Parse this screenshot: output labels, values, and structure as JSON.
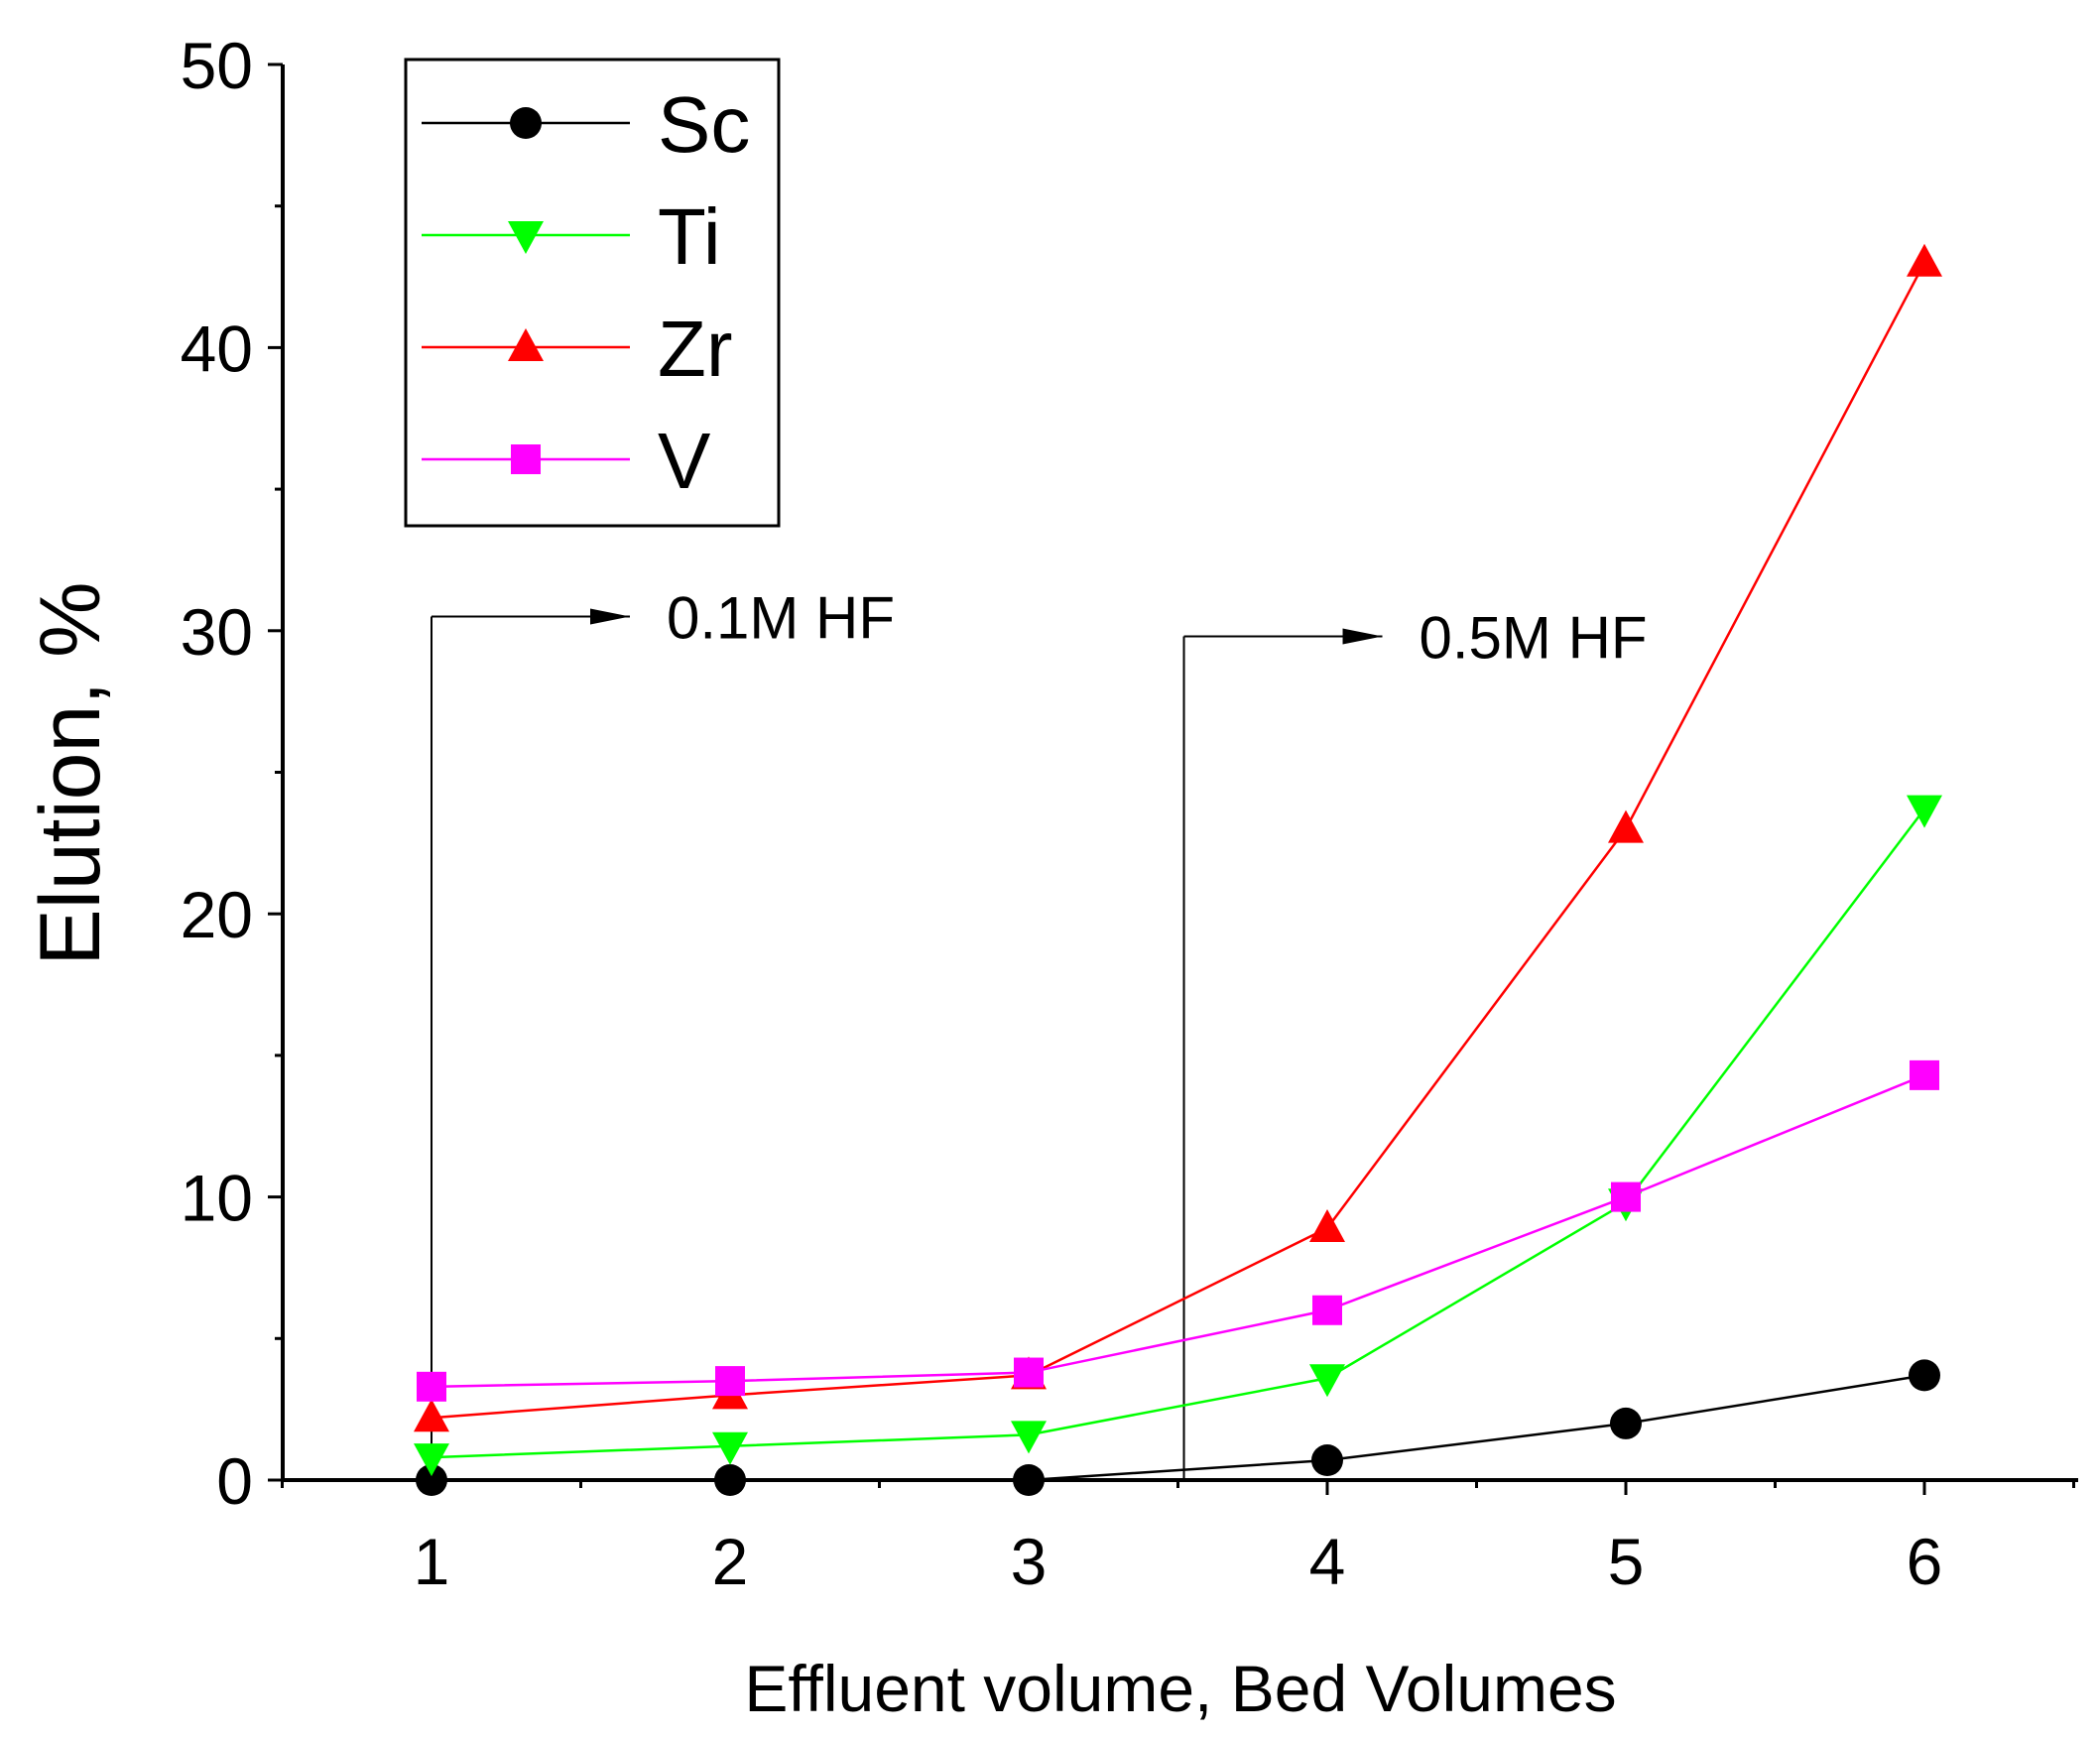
{
  "chart_data": {
    "type": "line",
    "title": "",
    "xlabel": "Effluent volume, Bed Volumes",
    "ylabel": "Elution, %",
    "xlim": [
      0.5,
      6.5
    ],
    "ylim": [
      0,
      50
    ],
    "x_ticks": [
      1,
      2,
      3,
      4,
      5,
      6
    ],
    "x_tick_labels": [
      "1",
      "2",
      "3",
      "4",
      "5",
      "6"
    ],
    "y_ticks": [
      0,
      10,
      20,
      30,
      40,
      50
    ],
    "y_tick_labels": [
      "0",
      "10",
      "20",
      "30",
      "40",
      "50"
    ],
    "grid": false,
    "legend_position": "top-left",
    "x": [
      1,
      2,
      3,
      4,
      5,
      6
    ],
    "series": [
      {
        "name": "Sc",
        "color": "#000000",
        "marker": "circle",
        "values": [
          0,
          0,
          0,
          0.7,
          2.0,
          3.7
        ]
      },
      {
        "name": "Ti",
        "color": "#00ff00",
        "marker": "triangle-down",
        "values": [
          0.8,
          1.2,
          1.6,
          3.6,
          9.8,
          23.7
        ]
      },
      {
        "name": "Zr",
        "color": "#ff0000",
        "marker": "triangle-up",
        "values": [
          2.2,
          3.0,
          3.7,
          8.9,
          23.0,
          43.0
        ]
      },
      {
        "name": "V",
        "color": "#ff00ff",
        "marker": "square",
        "values": [
          3.3,
          3.5,
          3.8,
          6.0,
          10.0,
          14.3
        ]
      }
    ],
    "annotations": [
      {
        "text": "0.1M HF",
        "x_data": 1,
        "y_data": 30.5
      },
      {
        "text": "0.5M HF",
        "x_data": 3.52,
        "y_data": 29.8
      }
    ]
  }
}
